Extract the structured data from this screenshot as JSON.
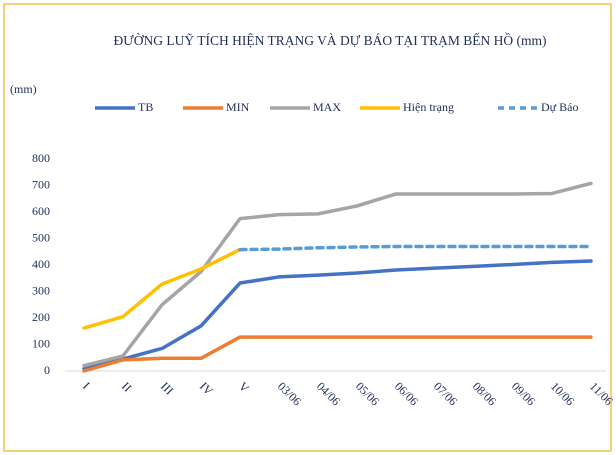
{
  "chart_data": {
    "type": "line",
    "title": "ĐƯỜNG LUỸ TÍCH HIỆN TRẠNG VÀ DỰ BÁO TẠI TRẠM BẾN HỒ (mm)",
    "y_label": "(mm)",
    "categories": [
      "I",
      "II",
      "III",
      "IV",
      "V",
      "03/06",
      "04/06",
      "05/06",
      "06/06",
      "07/06",
      "08/06",
      "09/06",
      "10/06",
      "11/06"
    ],
    "series": [
      {
        "name": "TB",
        "color": "#4472c4",
        "dashed": false,
        "values": [
          8,
          45,
          85,
          170,
          332,
          355,
          362,
          370,
          381,
          388,
          395,
          402,
          410,
          415
        ]
      },
      {
        "name": "MIN",
        "color": "#ed7d31",
        "dashed": false,
        "values": [
          0,
          42,
          48,
          48,
          128,
          128,
          128,
          128,
          128,
          128,
          128,
          128,
          128,
          128
        ]
      },
      {
        "name": "MAX",
        "color": "#a5a5a5",
        "dashed": false,
        "values": [
          20,
          57,
          250,
          375,
          575,
          590,
          593,
          623,
          668,
          668,
          668,
          668,
          670,
          708
        ]
      },
      {
        "name": "Hiện trạng",
        "color": "#ffc000",
        "dashed": false,
        "values": [
          162,
          205,
          328,
          385,
          458,
          null,
          null,
          null,
          null,
          null,
          null,
          null,
          null,
          null
        ]
      },
      {
        "name": "Dự Báo",
        "color": "#5b9bd5",
        "dashed": true,
        "values": [
          null,
          null,
          null,
          null,
          458,
          460,
          465,
          468,
          470,
          470,
          470,
          470,
          470,
          470
        ]
      }
    ],
    "ylim": [
      0,
      800
    ],
    "yticks": [
      0,
      100,
      200,
      300,
      400,
      500,
      600,
      700,
      800
    ],
    "grid": false
  }
}
